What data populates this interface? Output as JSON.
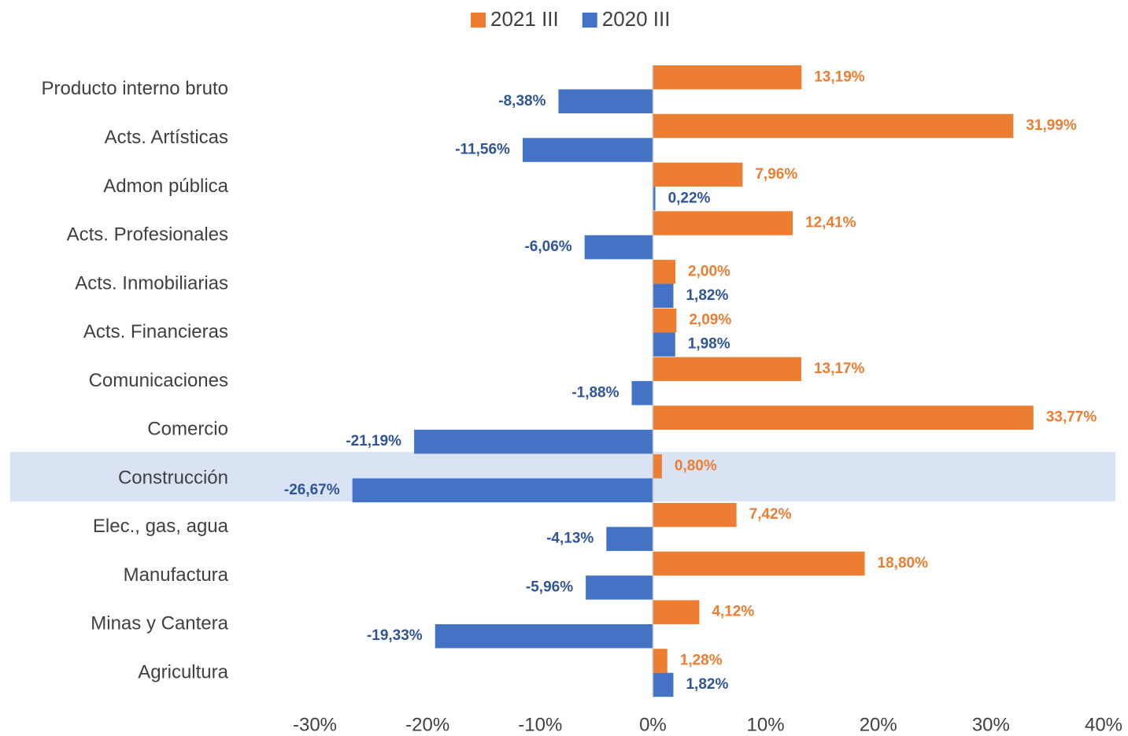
{
  "chart_data": {
    "type": "hbar",
    "categories": [
      "Producto interno bruto",
      "Acts. Artísticas",
      "Admon pública",
      "Acts. Profesionales",
      "Acts. Inmobiliarias",
      "Acts. Financieras",
      "Comunicaciones",
      "Comercio",
      "Construcción",
      "Elec., gas, agua",
      "Manufactura",
      "Minas y Cantera",
      "Agricultura"
    ],
    "series": [
      {
        "name": "2021 III",
        "color": "#ed7d31",
        "label_color": "#ed7d31",
        "values": [
          13.19,
          31.99,
          7.96,
          12.41,
          2.0,
          2.09,
          13.17,
          33.77,
          0.8,
          7.42,
          18.8,
          4.12,
          1.28
        ],
        "value_labels": [
          "13,19%",
          "31,99%",
          "7,96%",
          "12,41%",
          "2,00%",
          "2,09%",
          "13,17%",
          "33,77%",
          "0,80%",
          "7,42%",
          "18,80%",
          "4,12%",
          "1,28%"
        ]
      },
      {
        "name": "2020 III",
        "color": "#4472c4",
        "label_color": "#2f5597",
        "values": [
          -8.38,
          -11.56,
          0.22,
          -6.06,
          1.82,
          1.98,
          -1.88,
          -21.19,
          -26.67,
          -4.13,
          -5.96,
          -19.33,
          1.82
        ],
        "value_labels": [
          "-8,38%",
          "-11,56%",
          "0,22%",
          "-6,06%",
          "1,82%",
          "1,98%",
          "-1,88%",
          "-21,19%",
          "-26,67%",
          "-4,13%",
          "-5,96%",
          "-19,33%",
          "1,82%"
        ]
      }
    ],
    "xlim": [
      -30,
      40
    ],
    "xticks": [
      {
        "value": -30,
        "label": "-30%"
      },
      {
        "value": -20,
        "label": "-20%"
      },
      {
        "value": -10,
        "label": "-10%"
      },
      {
        "value": 0,
        "label": "0%"
      },
      {
        "value": 10,
        "label": "10%"
      },
      {
        "value": 20,
        "label": "20%"
      },
      {
        "value": 30,
        "label": "30%"
      },
      {
        "value": 40,
        "label": "40%"
      }
    ],
    "highlight": "Construcción",
    "highlight_color": "#dae3f3",
    "legend": "top"
  }
}
